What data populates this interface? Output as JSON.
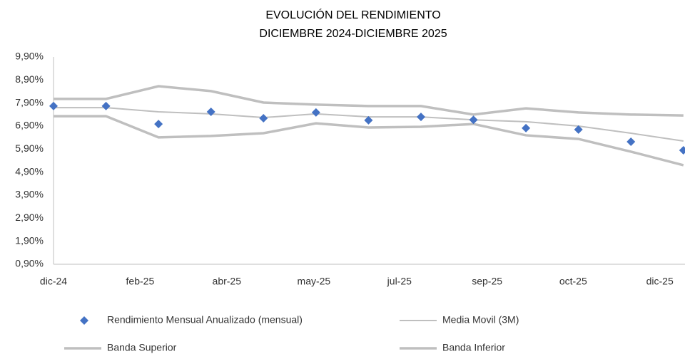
{
  "chart_data": {
    "type": "line",
    "title": "EVOLUCIÓN DEL RENDIMIENTO",
    "subtitle": "DICIEMBRE 2024-DICIEMBRE 2025",
    "x": [
      0,
      1,
      2,
      3,
      4,
      5,
      6,
      7,
      8,
      9,
      10,
      11,
      12
    ],
    "xlim": [
      0,
      12.03
    ],
    "xticks": [
      {
        "value": 0,
        "label": "dic-24"
      },
      {
        "value": 1.65,
        "label": "feb-25"
      },
      {
        "value": 3.3,
        "label": "abr-25"
      },
      {
        "value": 4.96,
        "label": "may-25"
      },
      {
        "value": 6.59,
        "label": "jul-25"
      },
      {
        "value": 8.26,
        "label": "sep-25"
      },
      {
        "value": 9.9,
        "label": "oct-25"
      },
      {
        "value": 11.55,
        "label": "dic-25"
      }
    ],
    "ylim": [
      0.9,
      9.9
    ],
    "yticks": [
      {
        "value": 0.9,
        "label": "0,90%"
      },
      {
        "value": 1.9,
        "label": "1,90%"
      },
      {
        "value": 2.9,
        "label": "2,90%"
      },
      {
        "value": 3.9,
        "label": "3,90%"
      },
      {
        "value": 4.9,
        "label": "4,90%"
      },
      {
        "value": 5.9,
        "label": "5,90%"
      },
      {
        "value": 6.9,
        "label": "6,90%"
      },
      {
        "value": 7.9,
        "label": "7,90%"
      },
      {
        "value": 8.9,
        "label": "8,90%"
      },
      {
        "value": 9.9,
        "label": "9,90%"
      }
    ],
    "grid": false,
    "legend": "bottom",
    "series": [
      {
        "name": "Rendimiento Mensual Anualizado (mensual)",
        "color": "#4472c4",
        "marker": "diamond",
        "values": [
          7.77,
          7.77,
          6.99,
          7.52,
          7.24,
          7.49,
          7.15,
          7.3,
          7.17,
          6.81,
          6.75,
          6.22,
          5.85
        ]
      },
      {
        "name": "Media Movil (3M)",
        "color": "#bfbfbf",
        "line_width": 2,
        "values": [
          7.7,
          7.7,
          7.52,
          7.43,
          7.27,
          7.43,
          7.3,
          7.3,
          7.17,
          7.09,
          6.9,
          6.59,
          6.25
        ]
      },
      {
        "name": "Banda Superior",
        "color": "#bfbfbf",
        "line_width": 3.5,
        "values": [
          8.08,
          8.08,
          8.63,
          8.42,
          7.92,
          7.83,
          7.77,
          7.77,
          7.4,
          7.67,
          7.49,
          7.4,
          7.36
        ]
      },
      {
        "name": "Banda Inferior",
        "color": "#bfbfbf",
        "line_width": 3.5,
        "values": [
          7.33,
          7.33,
          6.41,
          6.47,
          6.59,
          7.02,
          6.84,
          6.87,
          6.99,
          6.5,
          6.34,
          5.79,
          5.2
        ]
      }
    ]
  }
}
